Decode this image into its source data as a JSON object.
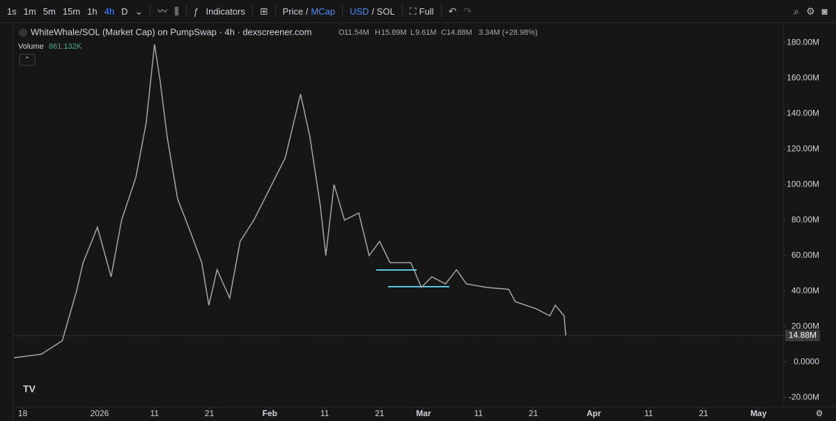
{
  "toolbar": {
    "intervals": [
      "1s",
      "1m",
      "5m",
      "15m",
      "1h",
      "4h",
      "D"
    ],
    "indicators": "Indicators",
    "price": "Price /",
    "mcap": "MCap",
    "usd": "USD",
    "sol": "/ SOL",
    "full": "Full"
  },
  "chart_data": {
    "type": "line",
    "title": "WhiteWhale/SOL (Market Cap) on PumpSwap · 4h · dexscreener.com",
    "ohlc": {
      "o_label": "O",
      "o": "11.54M",
      "h_label": "H",
      "h": "15.89M",
      "l_label": "L",
      "l": "9.61M",
      "c_label": "C",
      "c": "14.88M",
      "change": "3.34M (+28.98%)"
    },
    "volume_label": "Volume",
    "volume": "861.132K",
    "color": "#a8a8a8",
    "x": [
      -1.6,
      3.4,
      7.2,
      9.8,
      11,
      13.6,
      16.1,
      18,
      20.6,
      22.5,
      24,
      25,
      26.3,
      28.2,
      30.7,
      32.6,
      33.9,
      35.4,
      37.7,
      39.6,
      42.1,
      44.7,
      47.8,
      50.6,
      52.3,
      54.2,
      55.2,
      56.7,
      58.6,
      61.2,
      63.1,
      65,
      66.9,
      68.8,
      70.7,
      72.6,
      74.5,
      77,
      79,
      80.8,
      84.6,
      88.5,
      89.7,
      93.5,
      96,
      97,
      98.6,
      98.9
    ],
    "values": [
      2.4,
      4.4,
      12,
      40,
      56,
      76,
      48,
      80,
      104,
      135,
      179,
      159,
      127,
      92,
      72,
      56,
      32,
      52,
      36,
      68,
      80,
      96,
      115,
      151,
      127,
      88,
      60,
      100,
      80,
      84,
      60,
      68,
      56,
      56,
      56,
      42,
      48,
      44,
      52,
      44,
      42,
      41,
      34,
      30,
      26,
      32,
      26,
      14.88
    ],
    "last": {
      "value": 14.88,
      "label": "14.88M"
    },
    "xlim": [
      -1.6,
      138.6
    ],
    "xticks": [
      {
        "value": 0,
        "label": "18"
      },
      {
        "value": 14,
        "label": "2026"
      },
      {
        "value": 24,
        "label": "11"
      },
      {
        "value": 34,
        "label": "21"
      },
      {
        "value": 45,
        "label": "Feb"
      },
      {
        "value": 55,
        "label": "11"
      },
      {
        "value": 65,
        "label": "21"
      },
      {
        "value": 73,
        "label": "Mar"
      },
      {
        "value": 83,
        "label": "11"
      },
      {
        "value": 93,
        "label": "21"
      },
      {
        "value": 104,
        "label": "Apr"
      },
      {
        "value": 114,
        "label": "11"
      },
      {
        "value": 124,
        "label": "21"
      },
      {
        "value": 134,
        "label": "May"
      }
    ],
    "ylim": [
      -25.4,
      190.7
    ],
    "yticks": [
      {
        "value": -20,
        "label": "-20.00M"
      },
      {
        "value": 0,
        "label": "0.0000"
      },
      {
        "value": 20,
        "label": "20.00M"
      },
      {
        "value": 40,
        "label": "40.00M"
      },
      {
        "value": 60,
        "label": "60.00M"
      },
      {
        "value": 80,
        "label": "80.00M"
      },
      {
        "value": 100,
        "label": "100.00M"
      },
      {
        "value": 120,
        "label": "120.00M"
      },
      {
        "value": 140,
        "label": "140.00M"
      },
      {
        "value": 160,
        "label": "160.00M"
      },
      {
        "value": 180,
        "label": "180.00M"
      }
    ],
    "grid": false
  }
}
